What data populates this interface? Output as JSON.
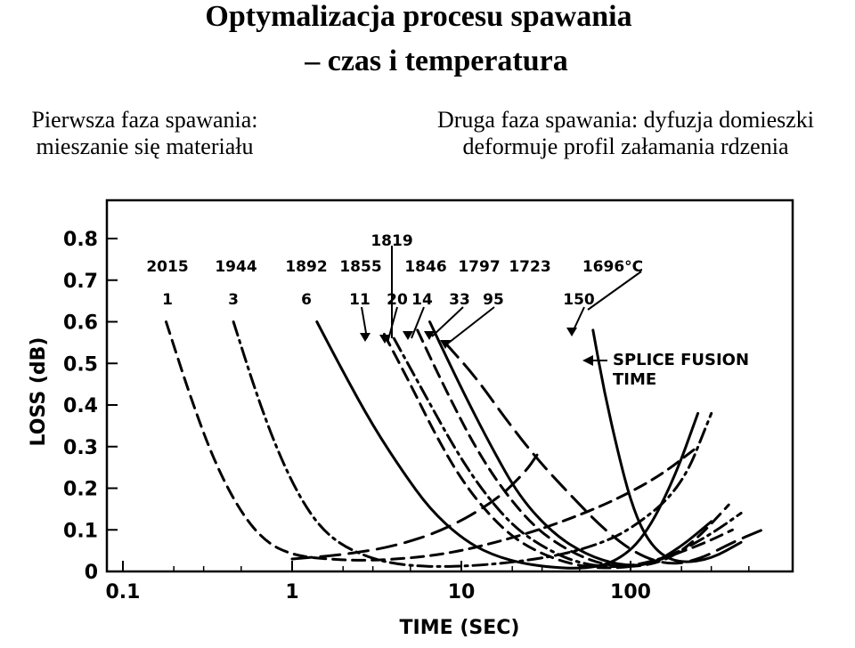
{
  "title": {
    "line1": "Optymalizacja procesu spawania",
    "line2": "– czas i temperatura"
  },
  "captions": {
    "left": [
      "Pierwsza faza spawania:",
      "mieszanie się materiału"
    ],
    "right": [
      "Druga faza spawania: dyfuzja domieszki",
      "deformuje profil załamania rdzenia"
    ]
  },
  "chart_data": {
    "type": "line",
    "xlabel": "TIME (SEC)",
    "ylabel": "LOSS (dB)",
    "xscale": "log",
    "xlim": [
      0.1,
      1000
    ],
    "ylim": [
      0,
      0.85
    ],
    "xticks": [
      "0.1",
      "1",
      "10",
      "100"
    ],
    "yticks": [
      "0",
      "0.1",
      "0.2",
      "0.3",
      "0.4",
      "0.5",
      "0.6",
      "0.7",
      "0.8"
    ],
    "temperature_labels": [
      "2015",
      "1944",
      "1892",
      "1855",
      "1819",
      "1846",
      "1797",
      "1723",
      "1696°C"
    ],
    "time_labels": [
      "1",
      "3",
      "6",
      "11",
      "20",
      "14",
      "33",
      "95",
      "150"
    ],
    "annotation": [
      "SPLICE FUSION",
      "TIME"
    ],
    "series": [
      {
        "style": "dashed",
        "x": [
          0.18,
          0.25,
          0.35,
          0.5,
          0.7,
          1,
          1.5,
          3,
          8,
          20,
          40,
          80,
          150,
          250
        ],
        "y": [
          0.6,
          0.42,
          0.26,
          0.14,
          0.07,
          0.04,
          0.03,
          0.025,
          0.04,
          0.08,
          0.12,
          0.17,
          0.23,
          0.3
        ]
      },
      {
        "style": "dashdot",
        "x": [
          0.45,
          0.6,
          0.8,
          1.1,
          1.5,
          2.2,
          4,
          10,
          30,
          60,
          100,
          200,
          300
        ],
        "y": [
          0.6,
          0.44,
          0.3,
          0.18,
          0.1,
          0.05,
          0.015,
          0.01,
          0.03,
          0.06,
          0.1,
          0.2,
          0.38
        ]
      },
      {
        "style": "solid",
        "x": [
          1.4,
          2,
          3,
          4.5,
          6.5,
          10,
          15,
          25,
          50,
          80,
          120,
          180,
          250
        ],
        "y": [
          0.6,
          0.48,
          0.35,
          0.24,
          0.15,
          0.08,
          0.04,
          0.015,
          0.005,
          0.02,
          0.08,
          0.22,
          0.38
        ]
      },
      {
        "style": "dashed",
        "x": [
          3.5,
          5,
          7,
          10,
          15,
          22,
          35,
          55,
          80,
          120,
          180,
          280,
          400
        ],
        "y": [
          0.57,
          0.45,
          0.33,
          0.22,
          0.13,
          0.07,
          0.03,
          0.01,
          0.008,
          0.015,
          0.04,
          0.07,
          0.1
        ]
      },
      {
        "style": "dashdot",
        "x": [
          4,
          6,
          9,
          13,
          20,
          30,
          45,
          70,
          110,
          180,
          300,
          450
        ],
        "y": [
          0.56,
          0.43,
          0.3,
          0.2,
          0.11,
          0.06,
          0.025,
          0.01,
          0.015,
          0.04,
          0.09,
          0.14
        ]
      },
      {
        "style": "dashed",
        "x": [
          5.5,
          8,
          12,
          18,
          28,
          45,
          70,
          110,
          170,
          250,
          380
        ],
        "y": [
          0.58,
          0.44,
          0.3,
          0.19,
          0.1,
          0.045,
          0.015,
          0.01,
          0.03,
          0.08,
          0.16
        ]
      },
      {
        "style": "solid",
        "x": [
          6.5,
          10,
          15,
          22,
          35,
          55,
          85,
          130,
          200,
          300
        ],
        "y": [
          0.6,
          0.44,
          0.3,
          0.18,
          0.09,
          0.04,
          0.015,
          0.015,
          0.06,
          0.12
        ]
      },
      {
        "style": "longdash",
        "x": [
          8,
          12,
          18,
          28,
          45,
          70,
          110,
          170,
          260,
          400,
          600
        ],
        "y": [
          0.55,
          0.47,
          0.37,
          0.27,
          0.18,
          0.1,
          0.04,
          0.015,
          0.03,
          0.07,
          0.1
        ]
      },
      {
        "style": "solid",
        "x": [
          60,
          70,
          85,
          100,
          120,
          150,
          200,
          300,
          450
        ],
        "y": [
          0.58,
          0.43,
          0.28,
          0.17,
          0.09,
          0.04,
          0.02,
          0.03,
          0.07
        ]
      },
      {
        "style": "longdash",
        "x": [
          1,
          2,
          4,
          8,
          16,
          24,
          28
        ],
        "y": [
          0.03,
          0.04,
          0.06,
          0.1,
          0.17,
          0.24,
          0.28
        ]
      }
    ]
  }
}
